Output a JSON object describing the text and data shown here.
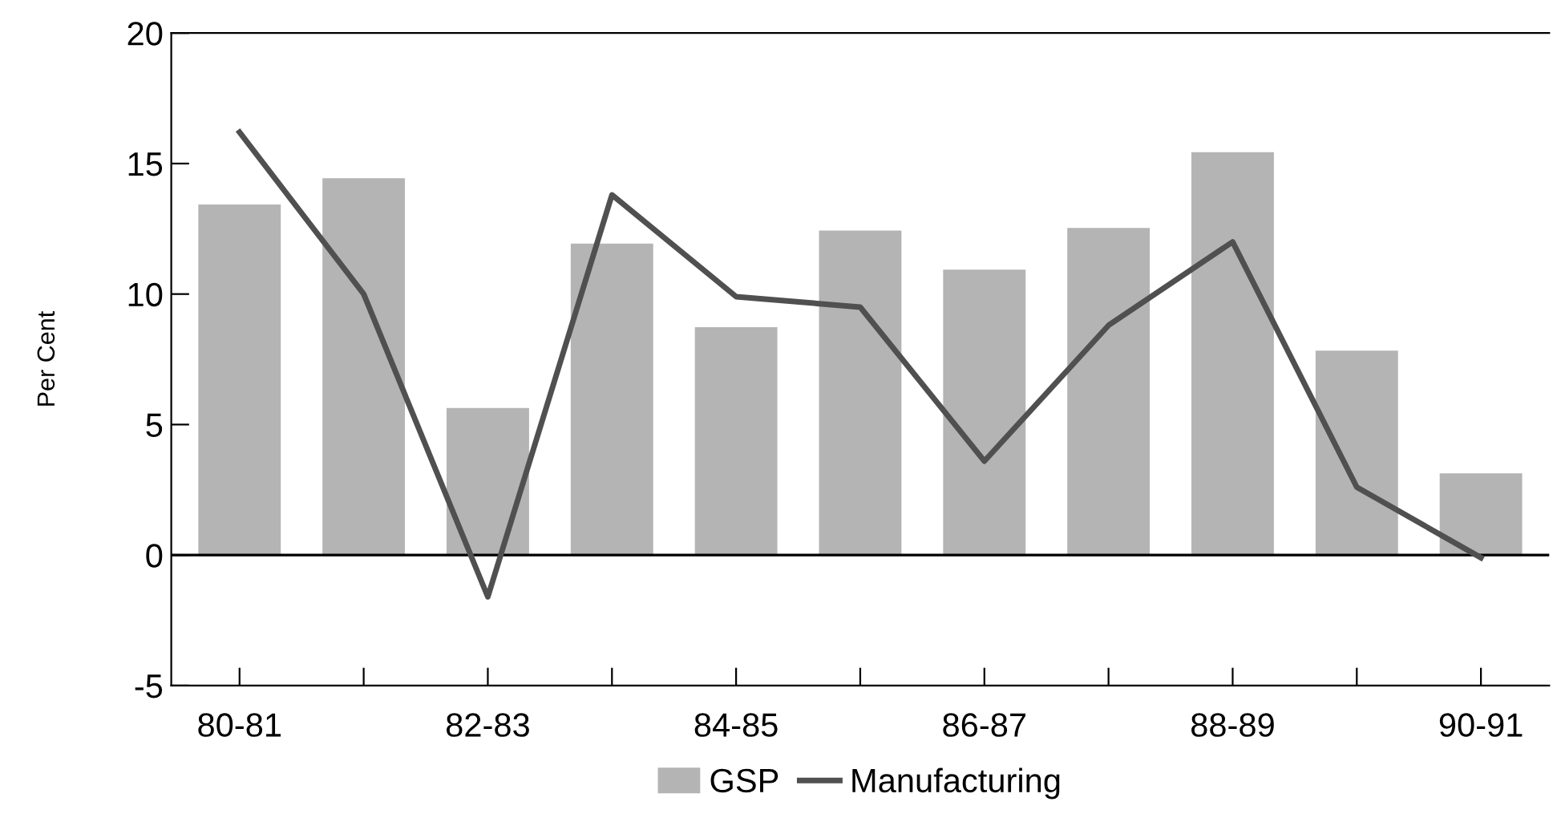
{
  "chart_data": {
    "type": "bar",
    "ylabel": "Per Cent",
    "categories": [
      "80-81",
      null,
      "82-83",
      null,
      "84-85",
      null,
      "86-87",
      null,
      "88-89",
      null,
      "90-91"
    ],
    "series": [
      {
        "name": "GSP",
        "color": "#b4b4b4",
        "values": [
          13.4,
          14.4,
          5.6,
          11.9,
          8.7,
          12.4,
          10.9,
          12.5,
          15.4,
          7.8,
          3.1
        ]
      },
      {
        "name": "Manufacturing",
        "type": "line",
        "color": "#505050",
        "values": [
          16.2,
          10.0,
          -1.6,
          13.8,
          9.9,
          9.5,
          3.6,
          8.8,
          12.0,
          2.6,
          -0.1
        ]
      }
    ],
    "ylim": [
      -5,
      20
    ],
    "yticks": [
      -5,
      0,
      5,
      10,
      15,
      20
    ],
    "ref_lines": [
      {
        "axis": "y",
        "value": 0,
        "color": "#000000"
      }
    ],
    "grid": false,
    "legend": "bottom",
    "marker": "none",
    "line_style": "solid"
  }
}
